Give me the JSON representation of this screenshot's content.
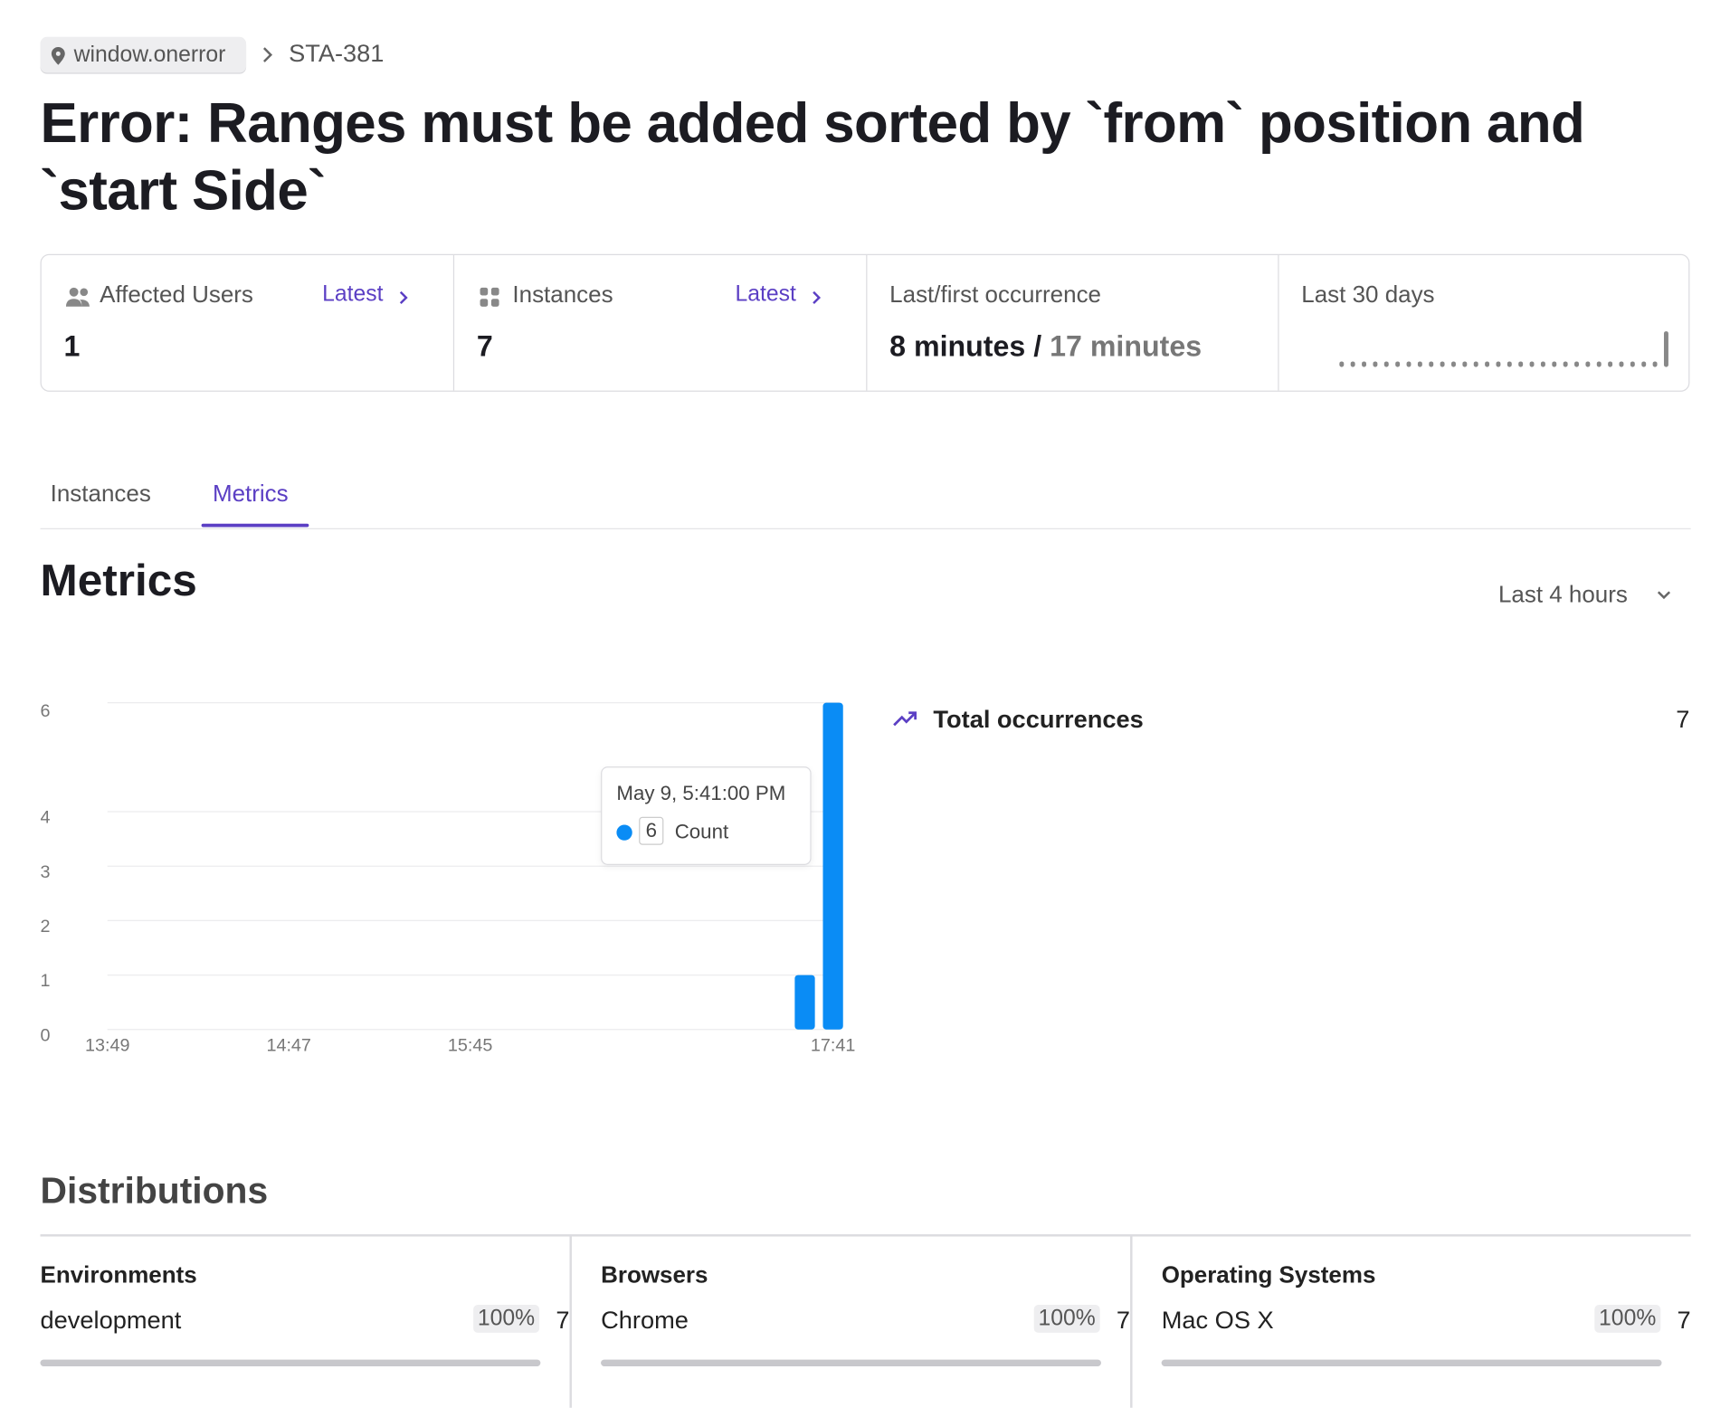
{
  "breadcrumb": {
    "tag": "window.onerror",
    "id": "STA-381"
  },
  "title": "Error: Ranges must be added sorted by `from` position and `start Side`",
  "stats": {
    "users": {
      "label": "Affected Users",
      "link": "Latest",
      "value": "1"
    },
    "instances": {
      "label": "Instances",
      "link": "Latest",
      "value": "7"
    },
    "occurrence": {
      "label": "Last/first occurrence",
      "last": "8 minutes",
      "separator": "/",
      "first": "17 minutes"
    },
    "trend": {
      "label": "Last 30 days",
      "values": [
        0,
        0,
        0,
        0,
        0,
        0,
        0,
        0,
        0,
        0,
        0,
        0,
        0,
        0,
        0,
        0,
        0,
        0,
        0,
        0,
        0,
        0,
        0,
        0,
        0,
        0,
        0,
        0,
        0,
        7
      ]
    }
  },
  "tabs": [
    "Instances",
    "Metrics"
  ],
  "metrics": {
    "heading": "Metrics",
    "range": "Last 4 hours"
  },
  "chart_data": {
    "type": "bar",
    "x": [
      1052,
      1061
    ],
    "series": [
      {
        "name": "Count",
        "color": "#0a8cf5",
        "values": [
          1,
          6
        ]
      }
    ],
    "xlim": [
      829,
      1063
    ],
    "xticks": [
      {
        "value": 829,
        "label": "13:49"
      },
      {
        "value": 887,
        "label": "14:47"
      },
      {
        "value": 945,
        "label": "15:45"
      },
      {
        "value": 1061,
        "label": "17:41"
      }
    ],
    "ylim": [
      0,
      6
    ],
    "yticks": [
      0,
      1,
      2,
      3,
      4,
      6
    ],
    "grid": true,
    "tooltip": {
      "title": "May 9, 5:41:00 PM",
      "value": "6",
      "label": "Count"
    }
  },
  "total": {
    "label": "Total occurrences",
    "value": "7"
  },
  "distributions": {
    "heading": "Distributions",
    "groups": [
      {
        "title": "Environments",
        "name": "development",
        "percent": 100,
        "percent_label": "100%",
        "count": "7"
      },
      {
        "title": "Browsers",
        "name": "Chrome",
        "percent": 100,
        "percent_label": "100%",
        "count": "7"
      },
      {
        "title": "Operating Systems",
        "name": "Mac OS X",
        "percent": 100,
        "percent_label": "100%",
        "count": "7"
      }
    ]
  }
}
